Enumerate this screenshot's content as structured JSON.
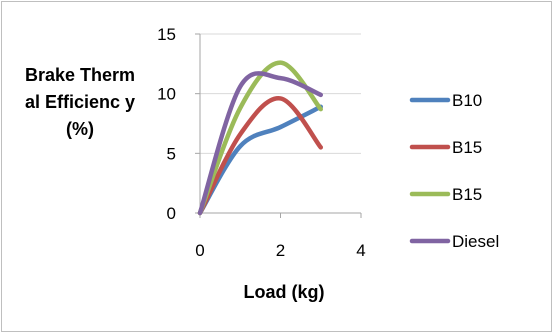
{
  "chart_data": {
    "type": "line",
    "title": "",
    "xlabel": "Load (kg)",
    "ylabel": "Brake Thermal Efficienc y (%)",
    "xlim": [
      0,
      4
    ],
    "ylim": [
      0,
      15
    ],
    "xticks": [
      "0",
      "2",
      "4"
    ],
    "yticks": [
      "0",
      "5",
      "10",
      "15"
    ],
    "grid": "horizontal",
    "legend": "right",
    "x": [
      0,
      1,
      2,
      3
    ],
    "series": [
      {
        "name": "B10",
        "color": "#4f81bd",
        "values": [
          0,
          5.6,
          7.2,
          8.9
        ]
      },
      {
        "name": "B15",
        "color": "#c0504d",
        "values": [
          0,
          6.6,
          9.6,
          5.5
        ]
      },
      {
        "name": "B15",
        "color": "#9bbb59",
        "values": [
          0,
          8.8,
          12.6,
          8.7
        ]
      },
      {
        "name": "Diesel",
        "color": "#8064a2",
        "values": [
          0,
          10.6,
          11.3,
          9.9
        ]
      }
    ]
  }
}
